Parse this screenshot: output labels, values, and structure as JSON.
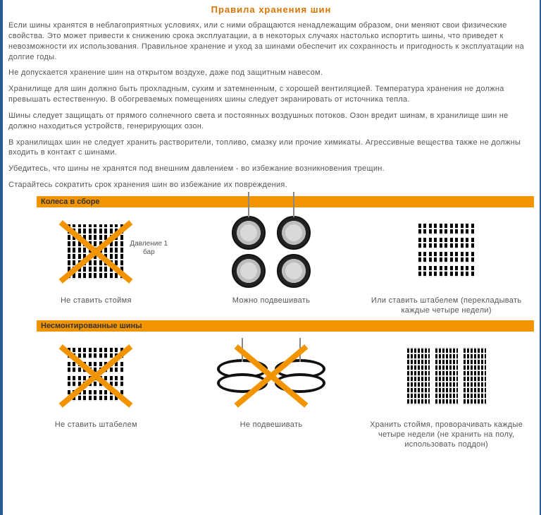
{
  "title": "Правила хранения шин",
  "paragraphs": [
    "Если шины хранятся в неблагоприятных условиях, или с ними обращаются ненадлежащим образом, они меняют свои физические свойства. Это может привести к снижению срока эксплуатации, а в некоторых случаях настолько испортить шины, что приведет к невозможности их использования. Правильное хранение и уход за шинами обеспечит их сохранность и пригодность к эксплуатации на долгие годы.",
    "Не допускается хранение шин на открытом воздухе, даже под защитным навесом.",
    "Хранилище для шин должно быть прохладным, сухим и затемненным, с хорошей вентиляцией. Температура хранения не должна превышать естественную. В обогреваемых помещениях шины следует экранировать от источника тепла.",
    "Шины следует защищать от прямого солнечного света и постоянных воздушных потоков. Озон вредит шинам, в хранилище шин не должно находиться устройств, генерирующих озон.",
    "В хранилищах шин не следует хранить растворители, топливо, смазку или прочие химикаты. Агрессивные вещества также не должны входить в контакт с шинами.",
    "Убедитесь, что шины не хранятся под внешним давлением - во избежание возникновения трещин.",
    "Старайтесь сократить срок хранения шин во избежание их повреждения."
  ],
  "sections": {
    "assembled": {
      "header": "Колеса в сборе",
      "pressure_note": "Давление 1 бар",
      "items": [
        {
          "id": "a1",
          "caption": "Не ставить стоймя",
          "crossed": true
        },
        {
          "id": "a2",
          "caption": "Можно подвешивать",
          "crossed": false
        },
        {
          "id": "a3",
          "caption": "Или ставить штабелем (перекладывать каждые четыре недели)",
          "crossed": false
        }
      ]
    },
    "unmounted": {
      "header": "Несмонтированные шины",
      "items": [
        {
          "id": "b1",
          "caption": "Не ставить штабелем",
          "crossed": true
        },
        {
          "id": "b2",
          "caption": "Не подвешивать",
          "crossed": true
        },
        {
          "id": "b3",
          "caption": "Хранить стоймя, проворачивать каждые четыре недели (не хранить на полу, использовать поддон)",
          "crossed": false
        }
      ]
    }
  },
  "colors": {
    "accent": "#f29400",
    "title": "#d97300",
    "border": "#2a5d8f",
    "text": "#555555"
  }
}
